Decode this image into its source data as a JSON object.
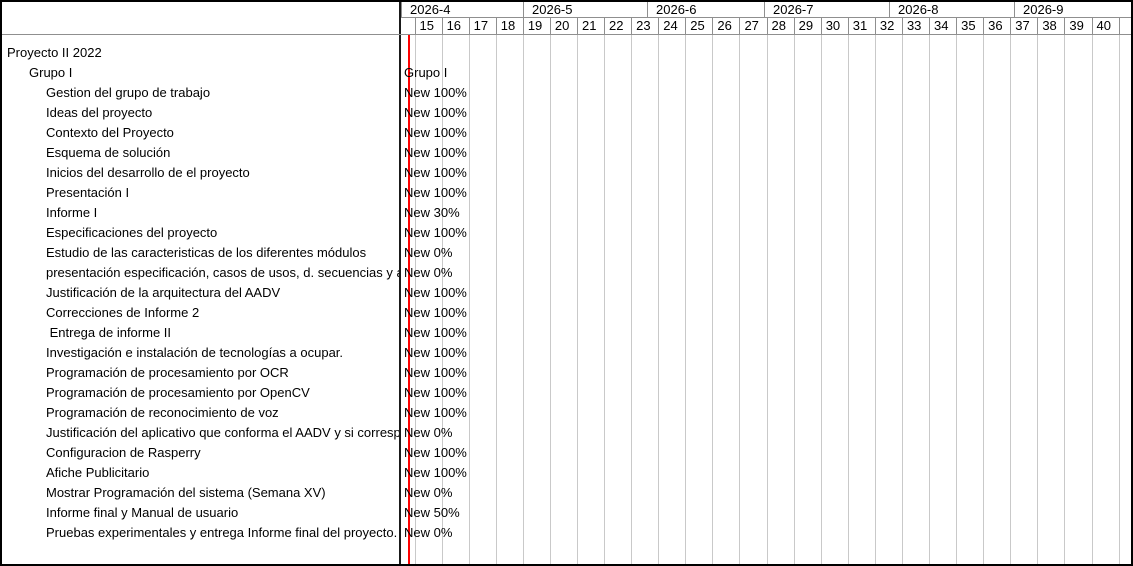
{
  "app": {
    "type": "gantt-chart"
  },
  "colors": {
    "today_line": "#ff0000",
    "grid_line": "#c9c9c9",
    "header_line": "#8f8f8f",
    "pane_divider": "#1a1a1a",
    "text": "#000000",
    "background": "#ffffff"
  },
  "timeline": {
    "months": [
      "2026-4",
      "2026-5",
      "2026-6",
      "2026-7",
      "2026-8",
      "2026-9"
    ],
    "weeks": [
      "15",
      "16",
      "17",
      "18",
      "19",
      "20",
      "21",
      "22",
      "23",
      "24",
      "25",
      "26",
      "27",
      "28",
      "29",
      "30",
      "31",
      "32",
      "33",
      "34",
      "35",
      "36",
      "37",
      "38",
      "39",
      "40"
    ]
  },
  "tasks": [
    {
      "label": "Proyecto II 2022",
      "level": 0,
      "chart": ""
    },
    {
      "label": "Grupo I",
      "level": 1,
      "chart": "Grupo I"
    },
    {
      "label": "Gestion del grupo de trabajo",
      "level": 2,
      "chart": "New 100%"
    },
    {
      "label": "Ideas del proyecto",
      "level": 2,
      "chart": "New 100%"
    },
    {
      "label": "Contexto del Proyecto",
      "level": 2,
      "chart": "New 100%"
    },
    {
      "label": "Esquema de solución",
      "level": 2,
      "chart": "New 100%"
    },
    {
      "label": "Inicios del desarrollo de el proyecto",
      "level": 2,
      "chart": "New 100%"
    },
    {
      "label": "Presentación I",
      "level": 2,
      "chart": "New 100%"
    },
    {
      "label": "Informe I",
      "level": 2,
      "chart": "New 30%"
    },
    {
      "label": "Especificaciones del proyecto",
      "level": 2,
      "chart": "New 100%"
    },
    {
      "label": "Estudio de las caracteristicas de los diferentes módulos",
      "level": 2,
      "chart": "New 0%"
    },
    {
      "label": "presentación especificación, casos de usos, d. secuencias y arquitectura",
      "level": 2,
      "chart": "New 0%"
    },
    {
      "label": "Justificación de la arquitectura del AADV",
      "level": 2,
      "chart": "New 100%"
    },
    {
      "label": "Correcciones de Informe 2",
      "level": 2,
      "chart": "New 100%"
    },
    {
      "label": " Entrega de informe II",
      "level": 2,
      "chart": "New 100%"
    },
    {
      "label": "Investigación e instalación de tecnologías a ocupar.",
      "level": 2,
      "chart": "New 100%"
    },
    {
      "label": "Programación de procesamiento por OCR",
      "level": 2,
      "chart": "New 100%"
    },
    {
      "label": "Programación de procesamiento por OpenCV",
      "level": 2,
      "chart": "New 100%"
    },
    {
      "label": "Programación de reconocimiento de voz",
      "level": 2,
      "chart": "New 100%"
    },
    {
      "label": "Justificación del aplicativo que conforma el AADV y si corresponde",
      "level": 2,
      "chart": "New 0%"
    },
    {
      "label": "Configuracion de Rasperry",
      "level": 2,
      "chart": "New 100%"
    },
    {
      "label": "Afiche Publicitario",
      "level": 2,
      "chart": "New 100%"
    },
    {
      "label": "Mostrar Programación del sistema (Semana XV)",
      "level": 2,
      "chart": "New 0%"
    },
    {
      "label": "Informe final y Manual de usuario",
      "level": 2,
      "chart": "New 50%"
    },
    {
      "label": "Pruebas experimentales y entrega Informe final del proyecto.",
      "level": 2,
      "chart": "New 0%"
    }
  ]
}
